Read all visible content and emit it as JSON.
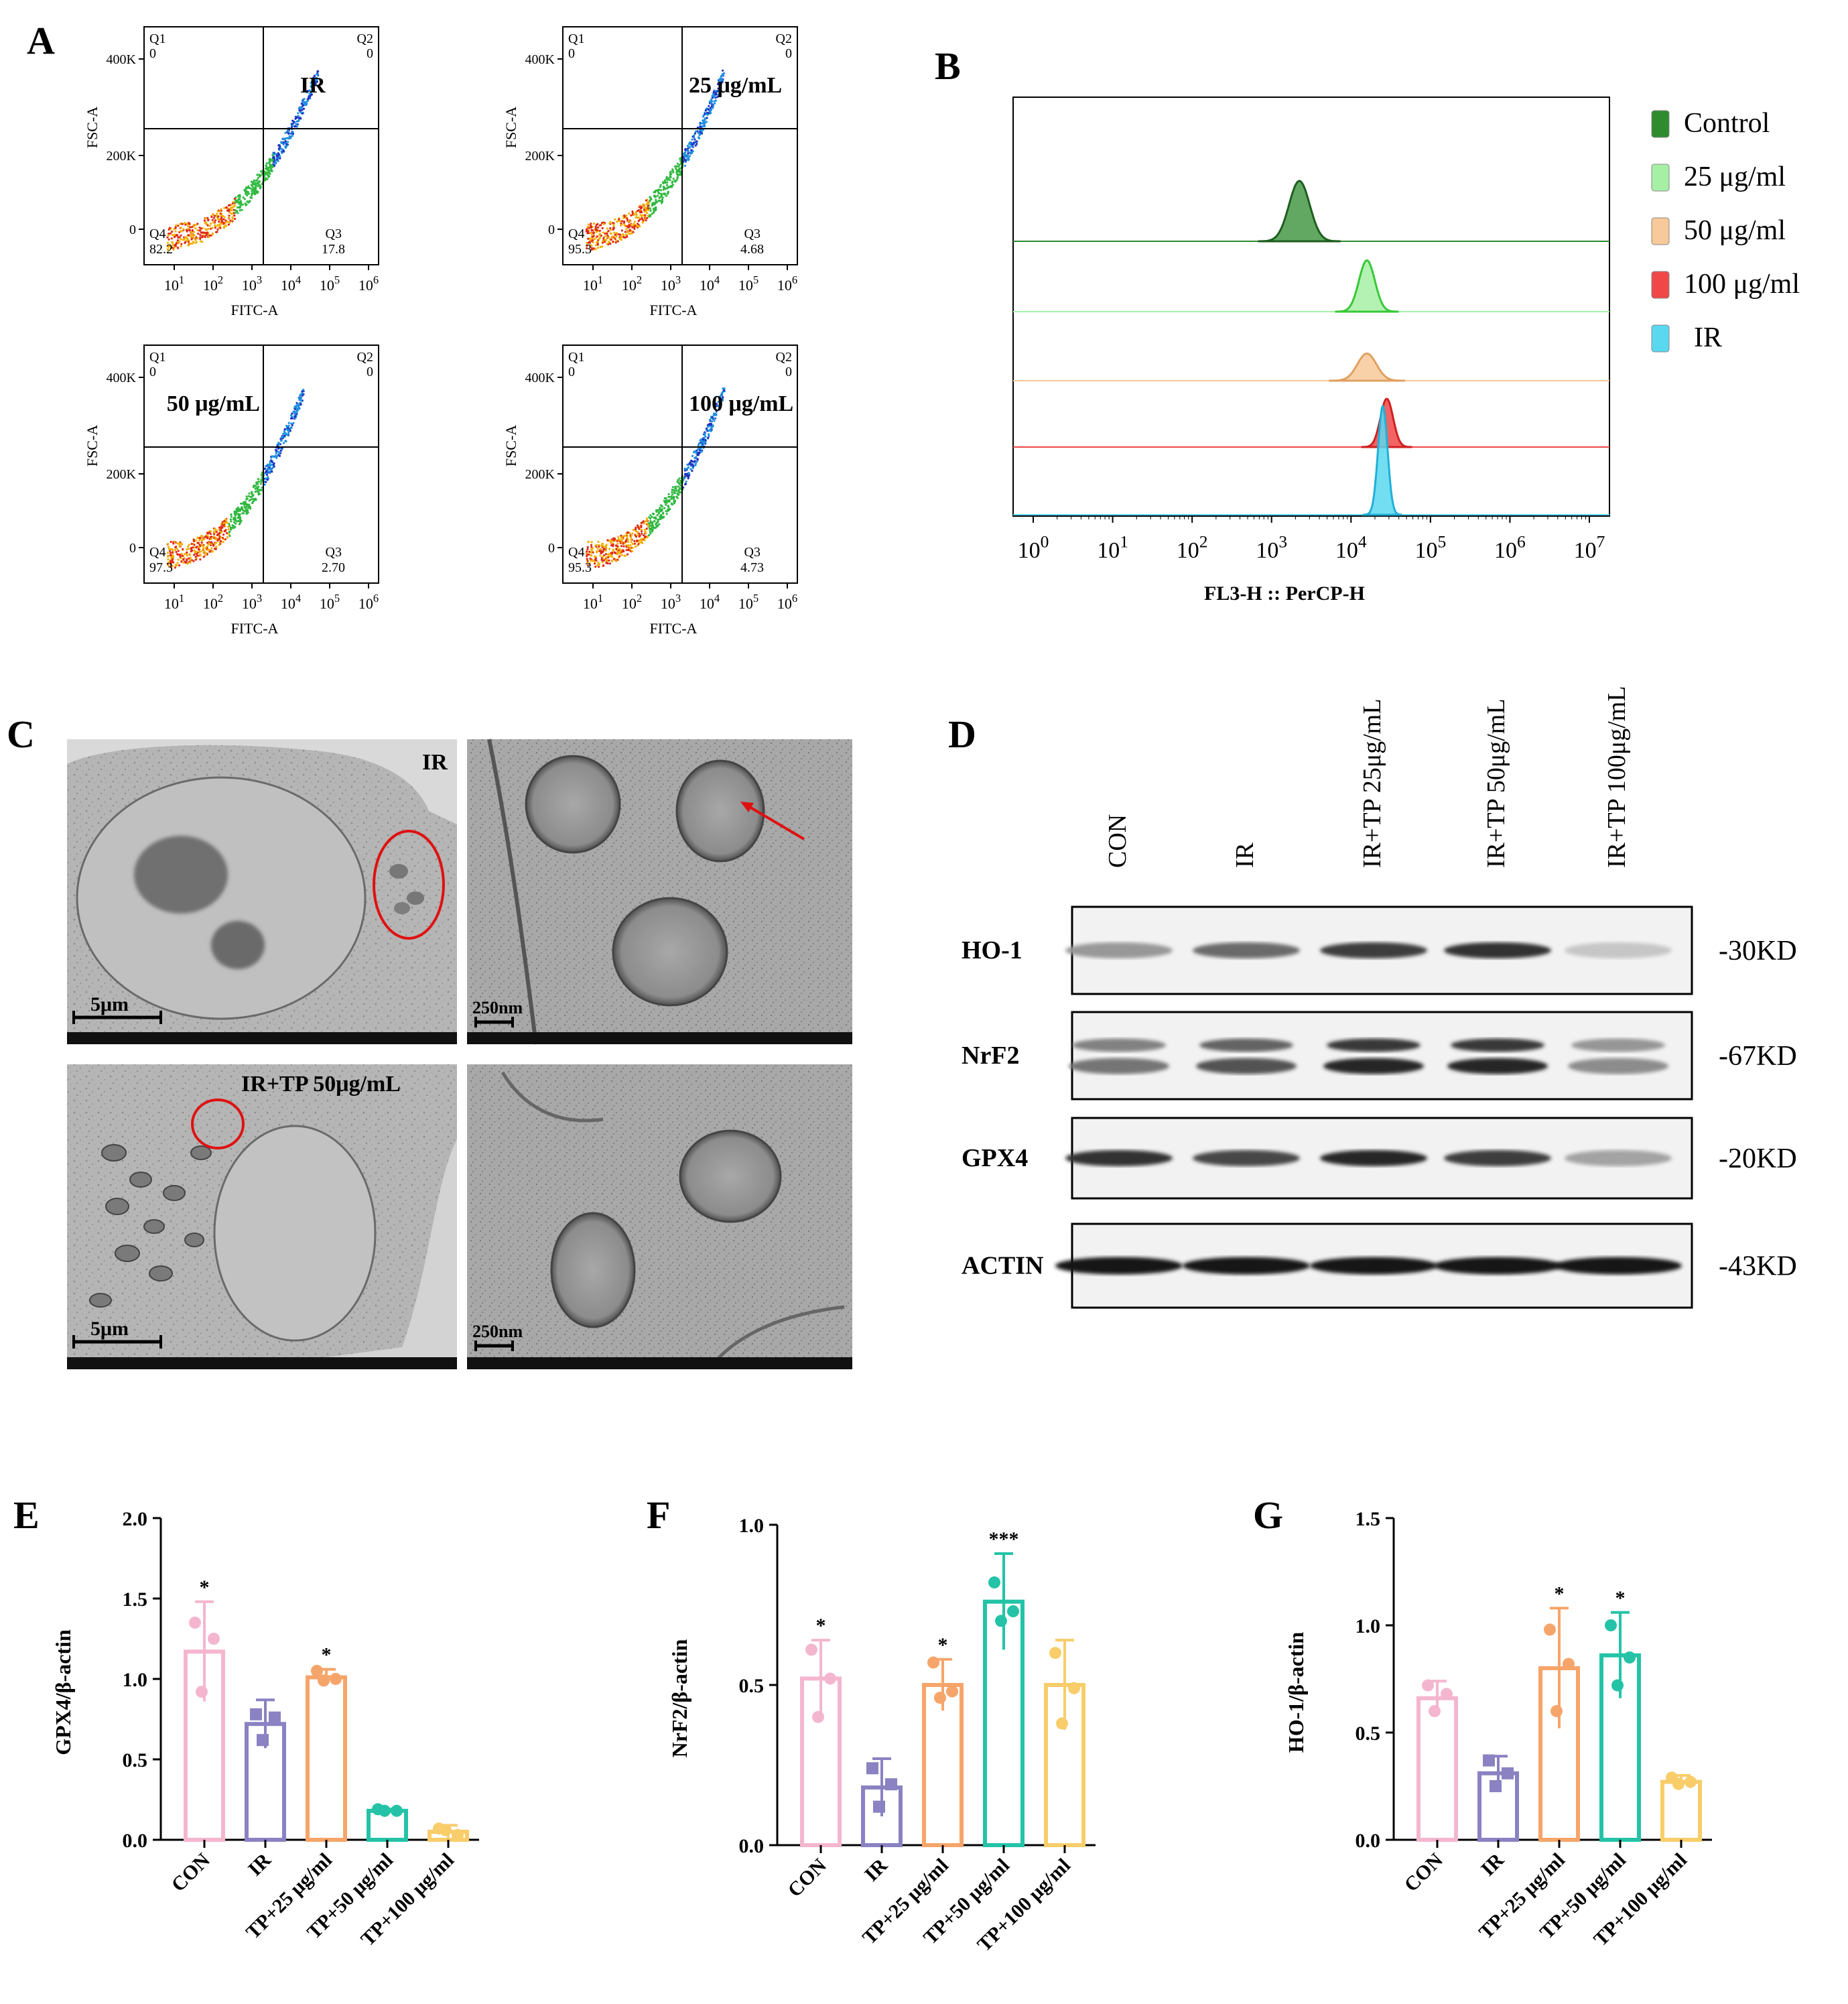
{
  "panels": {
    "A": {
      "letter": "A",
      "x_axis_label": "FITC-A",
      "y_axis_label": "FSC-A",
      "y_ticks": [
        "400K",
        "200K",
        "0"
      ],
      "x_ticks": [
        "10^1",
        "10^2",
        "10^3",
        "10^4",
        "10^5",
        "10^6"
      ],
      "plots": [
        {
          "title": "IR",
          "q1_label": "Q1",
          "q1": "0",
          "q2_label": "Q2",
          "q2": "0",
          "q3_label": "Q3",
          "q3": "17.8",
          "q4_label": "Q4",
          "q4": "82.2",
          "q3_frac": 0.178
        },
        {
          "title": "25 μg/mL",
          "q1_label": "Q1",
          "q1": "0",
          "q2_label": "Q2",
          "q2": "0",
          "q3_label": "Q3",
          "q3": "4.68",
          "q4_label": "Q4",
          "q4": "95.3",
          "q3_frac": 0.0468
        },
        {
          "title": "50 μg/mL",
          "q1_label": "Q1",
          "q1": "0",
          "q2_label": "Q2",
          "q2": "0",
          "q3_label": "Q3",
          "q3": "2.70",
          "q4_label": "Q4",
          "q4": "97.3",
          "q3_frac": 0.027
        },
        {
          "title": "100 μg/mL",
          "q1_label": "Q1",
          "q1": "0",
          "q2_label": "Q2",
          "q2": "0",
          "q3_label": "Q3",
          "q3": "4.73",
          "q4_label": "Q4",
          "q4": "95.3",
          "q3_frac": 0.0473
        }
      ]
    },
    "B": {
      "letter": "B",
      "x_axis_label": "FL3-H :: PerCP-H",
      "x_ticks": [
        "10^0",
        "10^1",
        "10^2",
        "10^3",
        "10^4",
        "10^5",
        "10^6",
        "10^7"
      ],
      "legend": [
        {
          "label": "Control",
          "color": "#2e8b2e"
        },
        {
          "label": "25 μg/ml",
          "color": "#a6f0a6"
        },
        {
          "label": "50 μg/ml",
          "color": "#f8c99a"
        },
        {
          "label": "100 μg/ml",
          "color": "#f04848"
        },
        {
          "label": "IR",
          "color": "#5ad8f0"
        }
      ],
      "peaks": [
        {
          "name": "Control",
          "center_log": 3.35,
          "width_log": 0.13,
          "rel_height": 1.0
        },
        {
          "name": "25 μg/ml",
          "center_log": 4.2,
          "width_log": 0.1,
          "rel_height": 0.85
        },
        {
          "name": "50 μg/ml",
          "center_log": 4.2,
          "width_log": 0.12,
          "rel_height": 0.45
        },
        {
          "name": "100 μg/ml",
          "center_log": 4.45,
          "width_log": 0.08,
          "rel_height": 0.8
        },
        {
          "name": "IR",
          "center_log": 4.4,
          "width_log": 0.06,
          "rel_height": 1.8
        }
      ]
    },
    "C": {
      "letter": "C",
      "top_label": "IR",
      "bottom_label": "IR+TP 50μg/mL",
      "scale_large": "5μm",
      "scale_small": "250nm"
    },
    "D": {
      "letter": "D",
      "lanes": [
        "CON",
        "IR",
        "IR+TP 25μg/mL",
        "IR+TP 50μg/mL",
        "IR+TP 100μg/mL"
      ],
      "blots": [
        {
          "protein": "HO-1",
          "size": "-30KD",
          "intensity": [
            0.45,
            0.65,
            0.85,
            0.9,
            0.25
          ]
        },
        {
          "protein": "NrF2",
          "size": "-67KD",
          "intensity": [
            0.6,
            0.75,
            0.95,
            0.95,
            0.5
          ]
        },
        {
          "protein": "GPX4",
          "size": "-20KD",
          "intensity": [
            0.9,
            0.8,
            0.95,
            0.85,
            0.4
          ]
        },
        {
          "protein": "ACTIN",
          "size": "-43KD",
          "intensity": [
            1.0,
            1.0,
            1.0,
            1.0,
            1.0
          ]
        }
      ]
    }
  },
  "chart_data": [
    {
      "panel": "E",
      "type": "bar",
      "categories": [
        "CON",
        "IR",
        "TP+25 μg/ml",
        "TP+50 μg/ml",
        "TP+100 μg/ml"
      ],
      "values": [
        1.17,
        0.72,
        1.01,
        0.18,
        0.05
      ],
      "errors": [
        0.31,
        0.15,
        0.05,
        0.01,
        0.04
      ],
      "points": [
        [
          1.35,
          1.25,
          0.92
        ],
        [
          0.78,
          0.76,
          0.62
        ],
        [
          1.05,
          1.0,
          0.99
        ],
        [
          0.19,
          0.18,
          0.18
        ],
        [
          0.07,
          0.03,
          0.06
        ]
      ],
      "significance": [
        "*",
        "",
        "*",
        "",
        ""
      ],
      "ylabel": "GPX4/β-actin",
      "ylim": [
        0,
        2.0
      ],
      "yticks": [
        "0.0",
        "0.5",
        "1.0",
        "1.5",
        "2.0"
      ],
      "colors": [
        "#f4b6cf",
        "#8a82c2",
        "#f6a56a",
        "#24c3a7",
        "#f8cd6a"
      ]
    },
    {
      "panel": "F",
      "type": "bar",
      "categories": [
        "CON",
        "IR",
        "TP+25 μg/ml",
        "TP+50 μg/ml",
        "TP+100 μg/ml"
      ],
      "values": [
        0.52,
        0.18,
        0.5,
        0.76,
        0.5
      ],
      "errors": [
        0.12,
        0.09,
        0.08,
        0.15,
        0.14
      ],
      "points": [
        [
          0.61,
          0.52,
          0.4
        ],
        [
          0.24,
          0.19,
          0.12
        ],
        [
          0.57,
          0.48,
          0.46
        ],
        [
          0.82,
          0.73,
          0.7
        ],
        [
          0.6,
          0.49,
          0.38
        ]
      ],
      "significance": [
        "*",
        "",
        "*",
        "***",
        ""
      ],
      "ylabel": "NrF2/β-actin",
      "ylim": [
        0,
        1.0
      ],
      "yticks": [
        "0.0",
        "0.5",
        "1.0"
      ],
      "colors": [
        "#f4b6cf",
        "#8a82c2",
        "#f6a56a",
        "#24c3a7",
        "#f8cd6a"
      ]
    },
    {
      "panel": "G",
      "type": "bar",
      "categories": [
        "CON",
        "IR",
        "TP+25 μg/ml",
        "TP+50 μg/ml",
        "TP+100 μg/ml"
      ],
      "values": [
        0.66,
        0.31,
        0.8,
        0.86,
        0.27
      ],
      "errors": [
        0.08,
        0.08,
        0.28,
        0.2,
        0.03
      ],
      "points": [
        [
          0.72,
          0.68,
          0.6
        ],
        [
          0.37,
          0.31,
          0.25
        ],
        [
          0.98,
          0.82,
          0.6
        ],
        [
          1.0,
          0.85,
          0.72
        ],
        [
          0.29,
          0.27,
          0.26
        ]
      ],
      "significance": [
        "",
        "",
        "*",
        "*",
        ""
      ],
      "ylabel": "HO-1/β-actin",
      "ylim": [
        0,
        1.5
      ],
      "yticks": [
        "0.0",
        "0.5",
        "1.0",
        "1.5"
      ],
      "colors": [
        "#f4b6cf",
        "#8a82c2",
        "#f6a56a",
        "#24c3a7",
        "#f8cd6a"
      ]
    }
  ]
}
